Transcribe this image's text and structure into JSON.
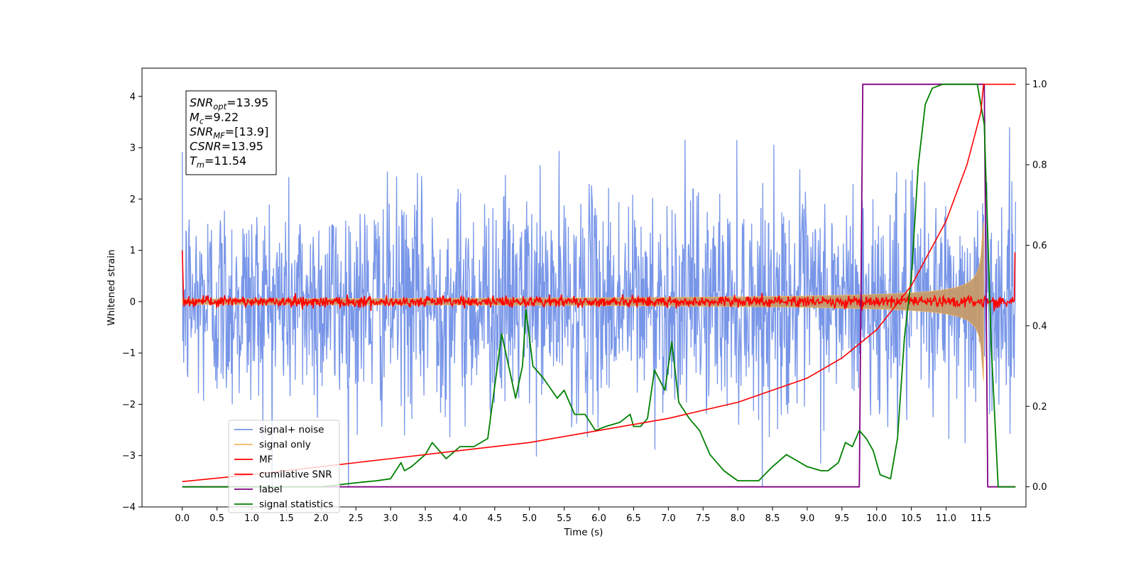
{
  "chart_data": {
    "type": "line",
    "xlabel": "Time (s)",
    "ylabel": "Whitened strain",
    "xlim": [
      -0.58,
      12.15
    ],
    "ylim": [
      -4.0,
      4.55
    ],
    "ylim_right": [
      -0.05,
      1.04
    ],
    "x_ticks": [
      "0.0",
      "0.5",
      "1.0",
      "1.5",
      "2.0",
      "2.5",
      "3.0",
      "3.5",
      "4.0",
      "4.5",
      "5.0",
      "5.5",
      "6.0",
      "6.5",
      "7.0",
      "7.5",
      "8.0",
      "8.5",
      "9.0",
      "9.5",
      "10.0",
      "10.5",
      "11.0",
      "11.5"
    ],
    "y_ticks_left": [
      "4",
      "3",
      "2",
      "1",
      "0",
      "−1",
      "−2",
      "−3",
      "−4"
    ],
    "y_ticks_right": [
      "1.0",
      "0.8",
      "0.6",
      "0.4",
      "0.2",
      "0.0"
    ],
    "grid": false,
    "legend_position": "lower-left",
    "annotation_lines": [
      {
        "sym": "SNR",
        "sub": "opt",
        "value": "=13.95"
      },
      {
        "sym": "M",
        "sub": "c",
        "value": "=9.22"
      },
      {
        "sym": "SNR",
        "sub": "MF",
        "value": "=[13.9]"
      },
      {
        "sym": "CSNR",
        "sub": "",
        "value": "=13.95"
      },
      {
        "sym": "T",
        "sub": "m",
        "value": "=11.54"
      }
    ],
    "series": [
      {
        "name": "signal+ noise",
        "color": "#7896e8",
        "axis": "left",
        "description": "white noise, sigma ~1, t 0–12 s"
      },
      {
        "name": "signal only",
        "color": "#f5b760",
        "axis": "left",
        "description": "chirp with merger time 11.54 s"
      },
      {
        "name": "MF",
        "color": "#ff0000",
        "axis": "left"
      },
      {
        "name": "cumilative SNR",
        "color": "#ff0000",
        "axis": "right",
        "x": [
          0.0,
          1.0,
          2.0,
          3.0,
          4.0,
          5.0,
          6.0,
          7.0,
          7.5,
          8.0,
          8.5,
          9.0,
          9.5,
          10.0,
          10.5,
          11.0,
          11.3,
          11.5,
          11.54,
          12.0
        ],
        "y": [
          0.013,
          0.03,
          0.05,
          0.07,
          0.09,
          0.11,
          0.14,
          0.17,
          0.19,
          0.21,
          0.24,
          0.27,
          0.32,
          0.39,
          0.5,
          0.66,
          0.8,
          0.93,
          1.0,
          1.0
        ]
      },
      {
        "name": "label",
        "color": "#800080",
        "axis": "right",
        "x": [
          0.0,
          9.75,
          9.8,
          11.55,
          11.6,
          12.0
        ],
        "y": [
          0.0,
          0.0,
          1.0,
          1.0,
          0.0,
          0.0
        ]
      },
      {
        "name": "signal statistics",
        "color": "#008000",
        "axis": "right",
        "x": [
          0.0,
          1.0,
          2.0,
          2.5,
          2.8,
          3.0,
          3.15,
          3.2,
          3.3,
          3.5,
          3.6,
          3.8,
          4.0,
          4.2,
          4.4,
          4.5,
          4.6,
          4.7,
          4.8,
          4.9,
          4.95,
          5.05,
          5.2,
          5.4,
          5.5,
          5.65,
          5.8,
          5.95,
          6.1,
          6.3,
          6.45,
          6.5,
          6.6,
          6.7,
          6.8,
          6.95,
          7.05,
          7.15,
          7.3,
          7.45,
          7.6,
          7.8,
          8.0,
          8.3,
          8.5,
          8.7,
          8.9,
          9.0,
          9.2,
          9.3,
          9.45,
          9.55,
          9.65,
          9.75,
          9.85,
          9.95,
          10.05,
          10.2,
          10.3,
          10.4,
          10.5,
          10.6,
          10.7,
          10.8,
          10.95,
          11.05,
          11.2,
          11.35,
          11.45,
          11.55,
          11.65,
          11.75,
          12.0
        ],
        "y": [
          0.0,
          0.0,
          0.0,
          0.01,
          0.015,
          0.02,
          0.06,
          0.04,
          0.05,
          0.08,
          0.11,
          0.07,
          0.1,
          0.1,
          0.12,
          0.25,
          0.38,
          0.3,
          0.22,
          0.3,
          0.44,
          0.3,
          0.27,
          0.22,
          0.24,
          0.18,
          0.18,
          0.14,
          0.15,
          0.16,
          0.18,
          0.15,
          0.15,
          0.17,
          0.29,
          0.24,
          0.36,
          0.21,
          0.17,
          0.14,
          0.08,
          0.04,
          0.015,
          0.015,
          0.05,
          0.08,
          0.06,
          0.05,
          0.04,
          0.04,
          0.06,
          0.11,
          0.1,
          0.14,
          0.12,
          0.09,
          0.03,
          0.02,
          0.12,
          0.37,
          0.52,
          0.8,
          0.95,
          0.99,
          1.0,
          1.0,
          1.0,
          1.0,
          1.0,
          0.9,
          0.35,
          0.0,
          0.0
        ]
      }
    ]
  }
}
